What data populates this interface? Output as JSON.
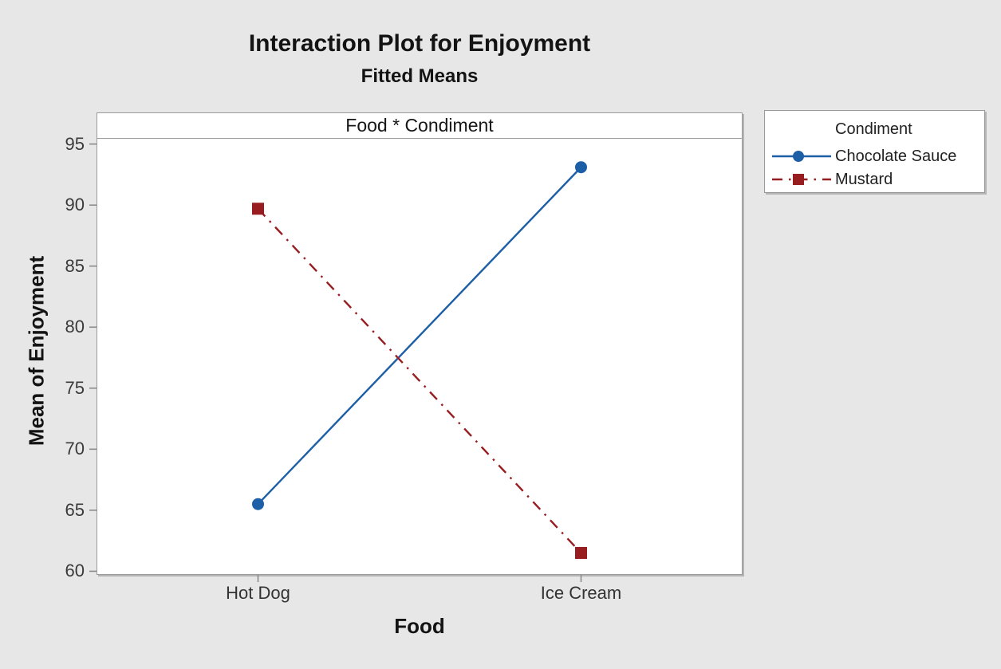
{
  "colors": {
    "background": "#e7e7e7",
    "plot_background": "#ffffff",
    "frame_border": "#9a9a9a",
    "tick": "#8c8c8c",
    "text": "#131313",
    "series_blue": "#1d5fa6",
    "series_dark_red": "#971d20"
  },
  "chart_data": {
    "type": "line",
    "title": "Interaction Plot for Enjoyment",
    "subtitle": "Fitted Means",
    "panel_label": "Food * Condiment",
    "xlabel": "Food",
    "ylabel": "Mean of Enjoyment",
    "categories": [
      "Hot Dog",
      "Ice Cream"
    ],
    "series": [
      {
        "name": "Chocolate Sauce",
        "values": [
          65.5,
          93.1
        ],
        "color": "#1d5fa6",
        "marker": "circle",
        "line_style": "solid"
      },
      {
        "name": "Mustard",
        "values": [
          89.7,
          61.5
        ],
        "color": "#971d20",
        "marker": "square",
        "line_style": "dash-dot"
      }
    ],
    "ylim": [
      59.7,
      95.5
    ],
    "yticks": [
      60,
      65,
      70,
      75,
      80,
      85,
      90,
      95
    ],
    "grid": false,
    "legend_title": "Condiment",
    "legend_position": "right"
  }
}
